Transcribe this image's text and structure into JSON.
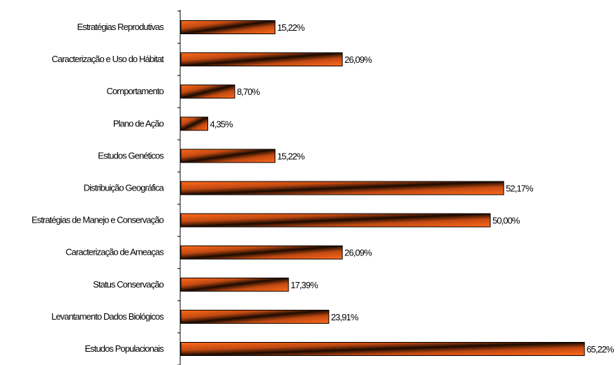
{
  "chart_data": {
    "type": "bar",
    "orientation": "horizontal",
    "categories": [
      "Estratégias Reprodutivas",
      "Caracterização e Uso do Hábitat",
      "Comportamento",
      "Plano de Ação",
      "Estudos Genéticos",
      "Distribuição Geográfica",
      "Estratégias de Manejo e Conservação",
      "Caracterização de Ameaças",
      "Status Conservação",
      "Levantamento Dados Biológicos",
      "Estudos Populacionais"
    ],
    "values": [
      15.22,
      26.09,
      8.7,
      4.35,
      15.22,
      52.17,
      50.0,
      26.09,
      17.39,
      23.91,
      65.22
    ],
    "value_labels": [
      "15,22%",
      "26,09%",
      "8,70%",
      "4,35%",
      "15,22%",
      "52,17%",
      "50,00%",
      "26,09%",
      "17,39%",
      "23,91%",
      "65,22%"
    ],
    "xlim": [
      0,
      70
    ],
    "grid": false,
    "bar_colors": {
      "dark": "#1a0a00",
      "mid": "#7a2a06",
      "bright": "#ff6a1a",
      "outline": "#000000"
    }
  }
}
